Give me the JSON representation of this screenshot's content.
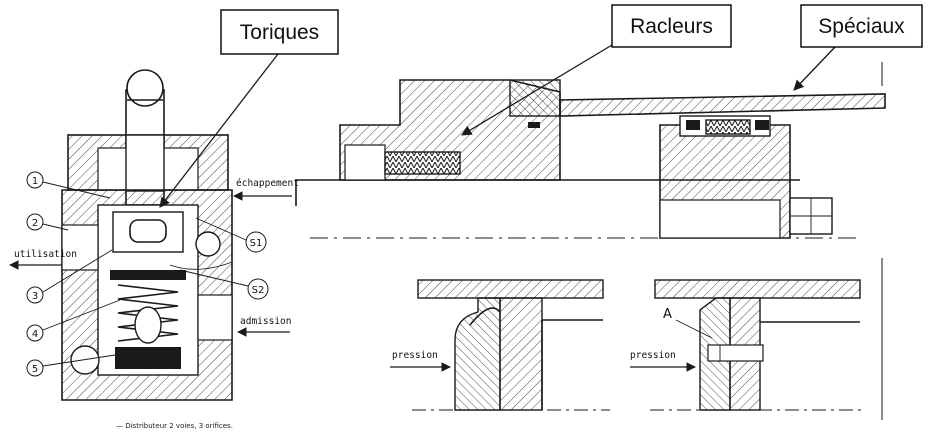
{
  "callouts": {
    "toriques": "Toriques",
    "racleurs": "Racleurs",
    "speciaux": "Spéciaux"
  },
  "left_figure": {
    "labels": {
      "echappement": "échappement",
      "utilisation": "utilisation",
      "admission": "admission"
    },
    "numbers": [
      "1",
      "2",
      "3",
      "4",
      "5"
    ],
    "ports": [
      "S1",
      "S2"
    ],
    "caption": "— Distributeur 2 voies, 3 orifices."
  },
  "bottom_figures": {
    "pression_label": "pression",
    "marker_a": "A"
  },
  "colors": {
    "ink": "#1a1a1a",
    "background": "#ffffff"
  }
}
